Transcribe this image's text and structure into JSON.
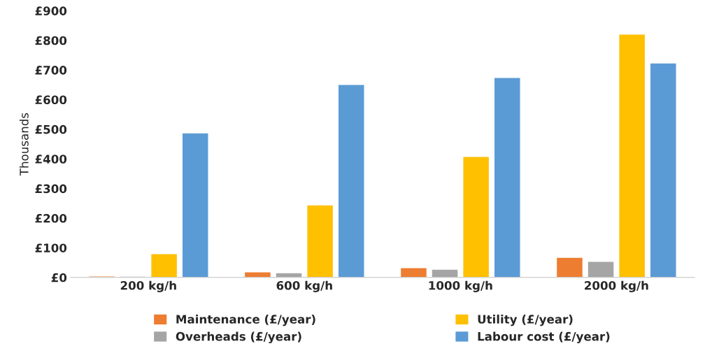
{
  "chart_data": {
    "type": "bar",
    "ylabel": "Thousands",
    "categories": [
      "200 kg/h",
      "600 kg/h",
      "1000 kg/h",
      "2000 kg/h"
    ],
    "series": [
      {
        "name": "Maintenance (£/year)",
        "color": "#ed7d31",
        "values": [
          5,
          19,
          33,
          68
        ]
      },
      {
        "name": "Overheads (£/year)",
        "color": "#a5a5a5",
        "values": [
          4,
          16,
          28,
          54
        ]
      },
      {
        "name": "Utility (£/year)",
        "color": "#ffc000",
        "values": [
          80,
          245,
          408,
          821
        ]
      },
      {
        "name": "Labour cost (£/year)",
        "color": "#5b9bd5",
        "values": [
          488,
          651,
          675,
          724
        ]
      }
    ],
    "ylim": [
      0,
      900
    ],
    "yticks": [
      {
        "value": 0,
        "label": "£0"
      },
      {
        "value": 100,
        "label": "£100"
      },
      {
        "value": 200,
        "label": "£200"
      },
      {
        "value": 300,
        "label": "£300"
      },
      {
        "value": 400,
        "label": "£400"
      },
      {
        "value": 500,
        "label": "£500"
      },
      {
        "value": 600,
        "label": "£600"
      },
      {
        "value": 700,
        "label": "£700"
      },
      {
        "value": 800,
        "label": "£800"
      },
      {
        "value": 900,
        "label": "£900"
      }
    ],
    "grid": false,
    "legend": "bottom"
  }
}
